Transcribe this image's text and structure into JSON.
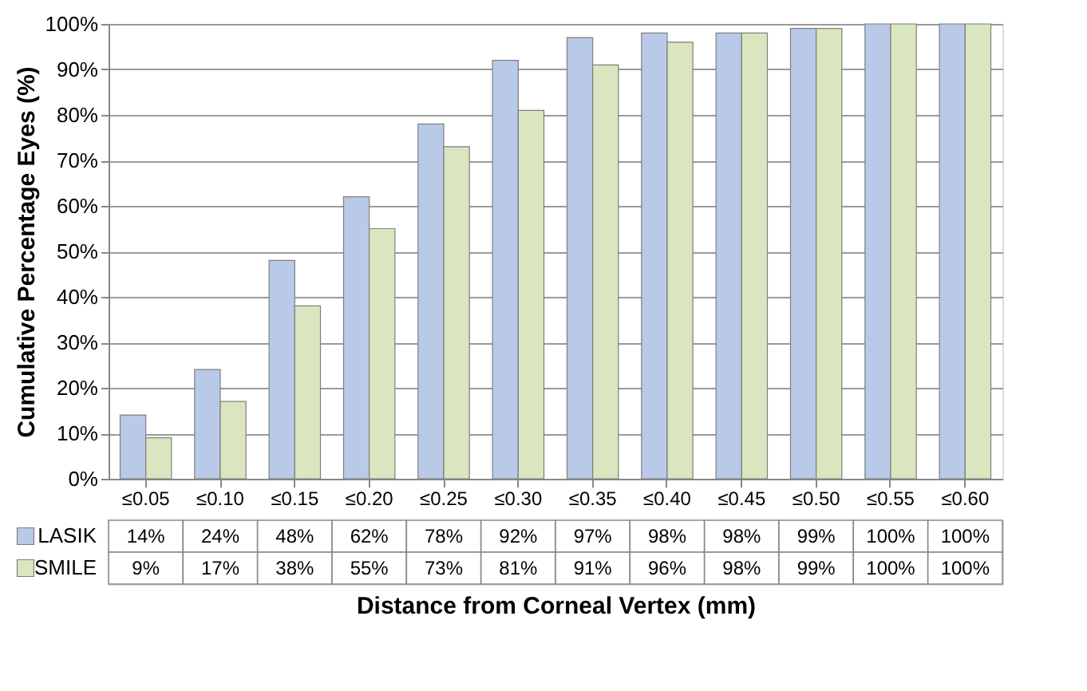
{
  "chart_data": {
    "type": "bar",
    "xlabel": "Distance from Corneal Vertex (mm)",
    "ylabel": "Cumulative Percentage Eyes (%)",
    "categories": [
      "≤0.05",
      "≤0.10",
      "≤0.15",
      "≤0.20",
      "≤0.25",
      "≤0.30",
      "≤0.35",
      "≤0.40",
      "≤0.45",
      "≤0.50",
      "≤0.55",
      "≤0.60"
    ],
    "series": [
      {
        "name": "LASIK",
        "color": "#b9c9e8",
        "values": [
          14,
          24,
          48,
          62,
          78,
          92,
          97,
          98,
          98,
          99,
          100,
          100
        ],
        "value_labels": [
          "14%",
          "24%",
          "48%",
          "62%",
          "78%",
          "92%",
          "97%",
          "98%",
          "98%",
          "99%",
          "100%",
          "100%"
        ]
      },
      {
        "name": "SMILE",
        "color": "#d9e6bf",
        "values": [
          9,
          17,
          38,
          55,
          73,
          81,
          91,
          96,
          98,
          99,
          100,
          100
        ],
        "value_labels": [
          "9%",
          "17%",
          "38%",
          "55%",
          "73%",
          "81%",
          "91%",
          "96%",
          "98%",
          "99%",
          "100%",
          "100%"
        ]
      }
    ],
    "ylim": [
      0,
      100
    ],
    "yticks": [
      {
        "value": 0,
        "label": "0%"
      },
      {
        "value": 10,
        "label": "10%"
      },
      {
        "value": 20,
        "label": "20%"
      },
      {
        "value": 30,
        "label": "30%"
      },
      {
        "value": 40,
        "label": "40%"
      },
      {
        "value": 50,
        "label": "50%"
      },
      {
        "value": 60,
        "label": "60%"
      },
      {
        "value": 70,
        "label": "70%"
      },
      {
        "value": 80,
        "label": "80%"
      },
      {
        "value": 90,
        "label": "90%"
      },
      {
        "value": 100,
        "label": "100%"
      }
    ],
    "grid": "y",
    "legend": "bottom"
  }
}
